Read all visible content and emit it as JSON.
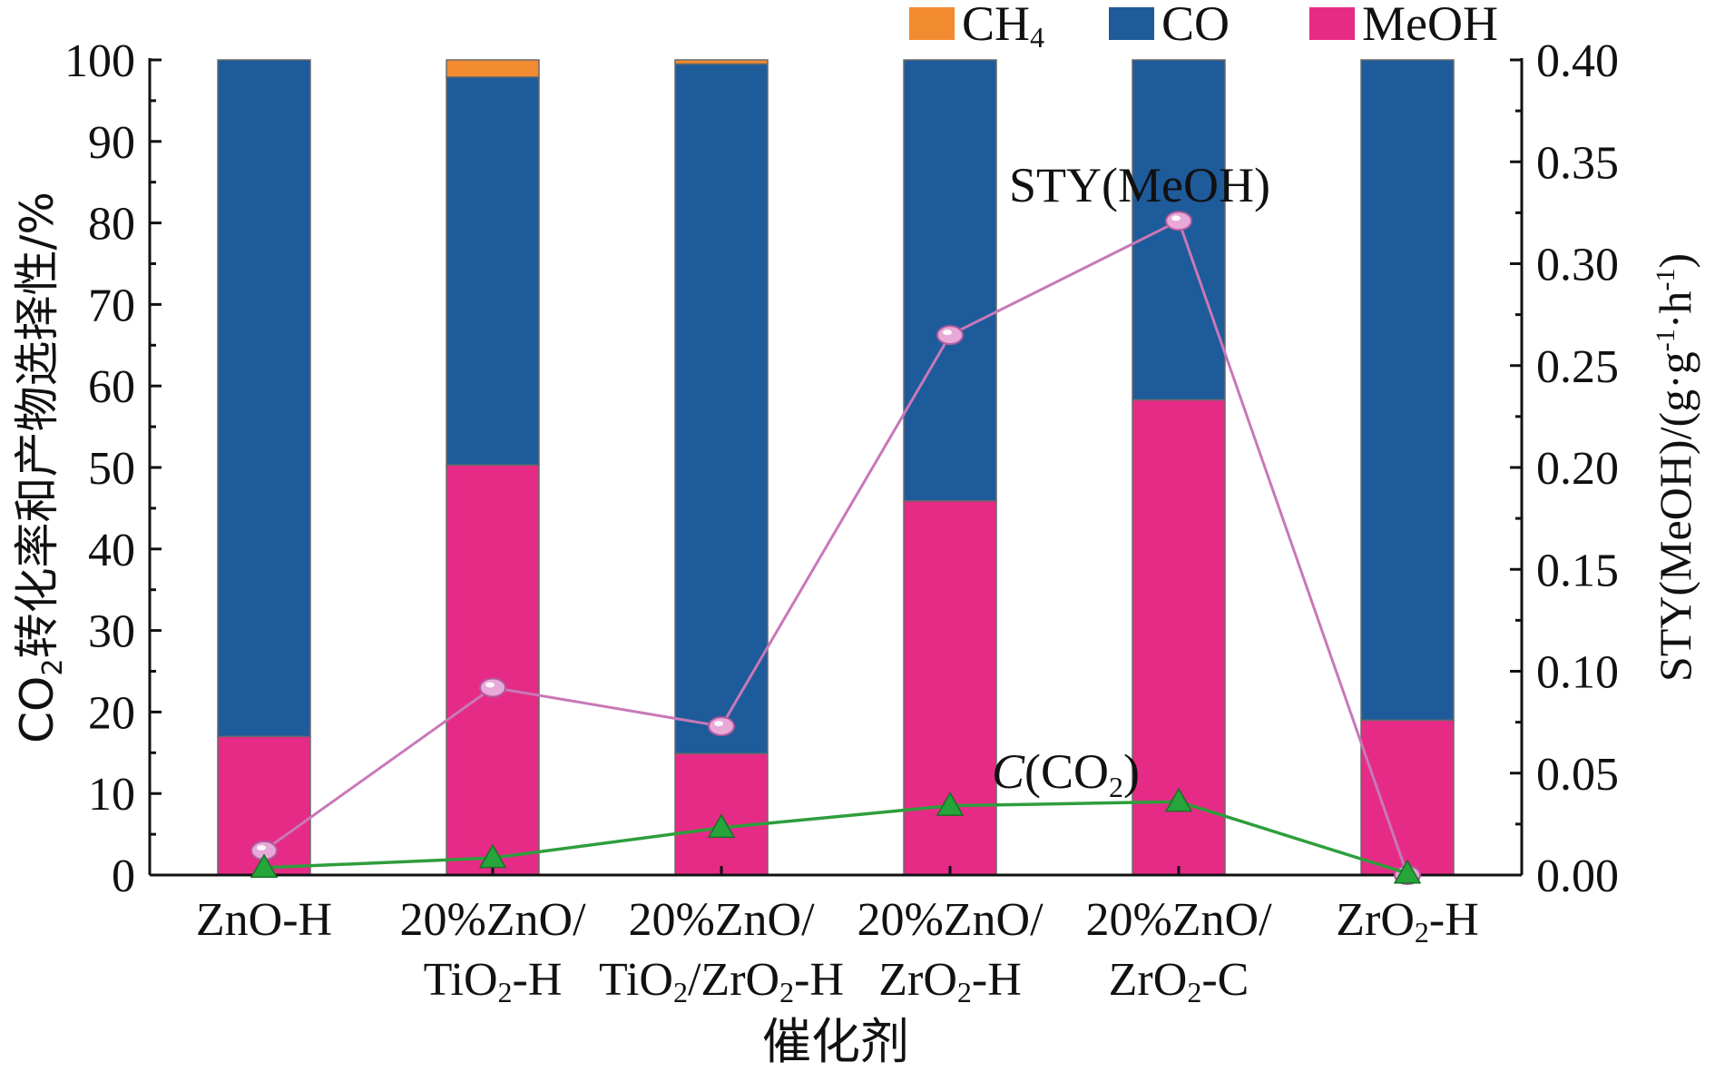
{
  "chart_data": {
    "type": "bar",
    "stacked": true,
    "xlabel": "催化剂",
    "ylabel": {
      "main": "CO",
      "sub": "2",
      "rest": "转化率和产物选择性/%"
    },
    "y2label": {
      "main": "STY(MeOH)/(g·g",
      "sup1": "-1",
      "mid": "·h",
      "sup2": "-1",
      "end": ")"
    },
    "ylim": [
      0,
      100
    ],
    "y2lim": [
      0,
      0.4
    ],
    "yticks": [
      "0",
      "10",
      "20",
      "30",
      "40",
      "50",
      "60",
      "70",
      "80",
      "90",
      "100"
    ],
    "y2ticks": [
      "0.00",
      "0.05",
      "0.10",
      "0.15",
      "0.20",
      "0.25",
      "0.30",
      "0.35",
      "0.40"
    ],
    "categories": [
      {
        "lines": [
          [
            {
              "t": "ZnO-H"
            }
          ]
        ]
      },
      {
        "lines": [
          [
            {
              "t": "20%ZnO/"
            }
          ],
          [
            {
              "t": "TiO"
            },
            {
              "t": "2",
              "sub": true
            },
            {
              "t": "-H"
            }
          ]
        ]
      },
      {
        "lines": [
          [
            {
              "t": "20%ZnO/"
            }
          ],
          [
            {
              "t": "TiO"
            },
            {
              "t": "2",
              "sub": true
            },
            {
              "t": "/ZrO"
            },
            {
              "t": "2",
              "sub": true
            },
            {
              "t": "-H"
            }
          ]
        ]
      },
      {
        "lines": [
          [
            {
              "t": "20%ZnO/"
            }
          ],
          [
            {
              "t": "ZrO"
            },
            {
              "t": "2",
              "sub": true
            },
            {
              "t": "-H"
            }
          ]
        ]
      },
      {
        "lines": [
          [
            {
              "t": "20%ZnO/"
            }
          ],
          [
            {
              "t": "ZrO"
            },
            {
              "t": "2",
              "sub": true
            },
            {
              "t": "-C"
            }
          ]
        ]
      },
      {
        "lines": [
          [
            {
              "t": "ZrO"
            },
            {
              "t": "2",
              "sub": true
            },
            {
              "t": "-H"
            }
          ]
        ]
      }
    ],
    "series": [
      {
        "name": "MeOH",
        "sub": "",
        "color": "#e52b86",
        "values": [
          17,
          50.3,
          14.9,
          45.9,
          58.3,
          19
        ]
      },
      {
        "name": "CO",
        "sub": "",
        "color": "#1e5b9a",
        "values": [
          83,
          47.6,
          84.6,
          54.1,
          41.7,
          81
        ]
      },
      {
        "name": "CH",
        "sub": "4",
        "color": "#f28a30",
        "values": [
          0,
          2.1,
          0.5,
          0,
          0,
          0
        ]
      }
    ],
    "legend_order": [
      2,
      1,
      0
    ],
    "legend_placement": "top-right",
    "lines": [
      {
        "name": "STY(MeOH)",
        "axis": "right",
        "marker": "circle",
        "color": "#c878b8",
        "values": [
          0.012,
          0.092,
          0.073,
          0.265,
          0.321,
          0.0
        ]
      },
      {
        "name": "C(CO2)",
        "axis": "left",
        "marker": "triangle",
        "color": "#2e9e3c",
        "values": [
          0.9,
          2.1,
          5.8,
          8.5,
          9.0,
          0.2
        ]
      }
    ],
    "annotations": {
      "sty": "STY(MeOH)",
      "conv": {
        "italic": "C",
        "rest": "(CO",
        "sub": "2",
        "end": ")"
      }
    }
  }
}
